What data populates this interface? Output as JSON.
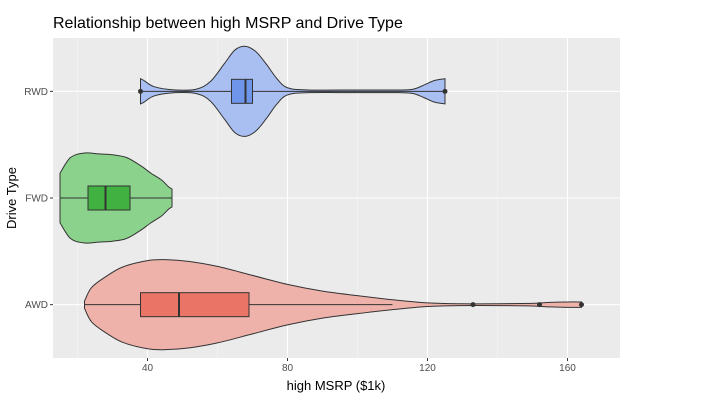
{
  "chart_data": {
    "type": "violin",
    "title": "Relationship between high MSRP and Drive Type",
    "xlabel": "high MSRP ($1k)",
    "ylabel": "Drive Type",
    "xlim": [
      13,
      175
    ],
    "x_ticks": [
      40,
      80,
      120,
      160
    ],
    "categories": [
      "AWD",
      "FWD",
      "RWD"
    ],
    "grid": true,
    "legend": "none",
    "series": [
      {
        "category": "RWD",
        "color": "#6f95eb",
        "fill_color": "#a9bff2",
        "min": 38,
        "max": 125,
        "q1": 64,
        "median": 68,
        "q3": 70,
        "whisker_low": 38,
        "whisker_high": 125,
        "outliers": [
          38,
          125
        ],
        "density": [
          [
            38,
            0.28
          ],
          [
            39,
            0.24
          ],
          [
            42,
            0.1
          ],
          [
            48,
            0.03
          ],
          [
            54,
            0.05
          ],
          [
            58,
            0.22
          ],
          [
            62,
            0.62
          ],
          [
            65,
            0.92
          ],
          [
            68,
            1.0
          ],
          [
            71,
            0.88
          ],
          [
            74,
            0.6
          ],
          [
            77,
            0.28
          ],
          [
            80,
            0.08
          ],
          [
            86,
            0.03
          ],
          [
            100,
            0.03
          ],
          [
            112,
            0.03
          ],
          [
            116,
            0.05
          ],
          [
            119,
            0.14
          ],
          [
            122,
            0.24
          ],
          [
            125,
            0.28
          ]
        ]
      },
      {
        "category": "FWD",
        "color": "#41b141",
        "fill_color": "#8bd38c",
        "min": 15,
        "max": 47,
        "q1": 23,
        "median": 28,
        "q3": 35,
        "whisker_low": 15,
        "whisker_high": 47,
        "outliers": [],
        "density": [
          [
            15,
            0.55
          ],
          [
            18,
            0.9
          ],
          [
            22,
            1.0
          ],
          [
            26,
            0.98
          ],
          [
            30,
            0.96
          ],
          [
            34,
            0.9
          ],
          [
            38,
            0.72
          ],
          [
            41,
            0.55
          ],
          [
            44,
            0.4
          ],
          [
            46,
            0.25
          ],
          [
            47,
            0.2
          ]
        ]
      },
      {
        "category": "AWD",
        "color": "#ea7466",
        "fill_color": "#efb2aa",
        "min": 22,
        "max": 164,
        "q1": 38,
        "median": 49,
        "q3": 69,
        "whisker_low": 22,
        "whisker_high": 110,
        "outliers": [
          133,
          152,
          164
        ],
        "density": [
          [
            22,
            0.08
          ],
          [
            24,
            0.38
          ],
          [
            28,
            0.62
          ],
          [
            33,
            0.84
          ],
          [
            40,
            0.98
          ],
          [
            45,
            1.0
          ],
          [
            52,
            0.96
          ],
          [
            60,
            0.85
          ],
          [
            70,
            0.65
          ],
          [
            80,
            0.45
          ],
          [
            90,
            0.3
          ],
          [
            100,
            0.2
          ],
          [
            110,
            0.11
          ],
          [
            120,
            0.04
          ],
          [
            130,
            0.02
          ],
          [
            140,
            0.02
          ],
          [
            150,
            0.03
          ],
          [
            155,
            0.05
          ],
          [
            160,
            0.06
          ],
          [
            164,
            0.06
          ]
        ]
      }
    ]
  }
}
